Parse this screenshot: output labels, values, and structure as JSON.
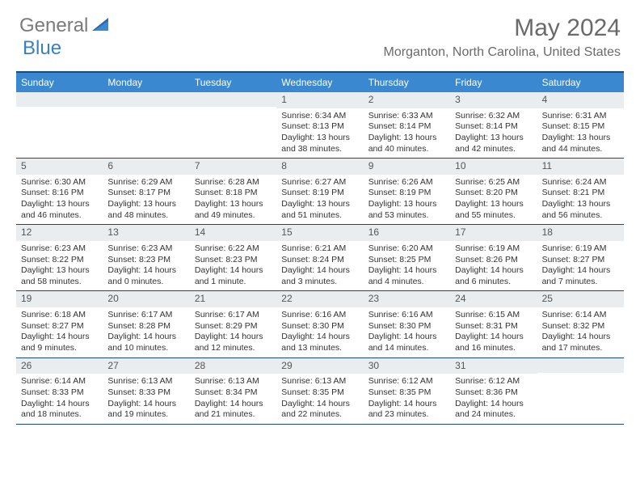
{
  "logo": {
    "general": "General",
    "blue": "Blue"
  },
  "title": "May 2024",
  "location": "Morganton, North Carolina, United States",
  "colors": {
    "header_bg": "#3a88d0",
    "border": "#1b4a7a",
    "daynum_bg": "#e9edf0",
    "text": "#333333",
    "title_text": "#6a6a6a",
    "logo_gray": "#7a7a7a",
    "logo_blue": "#3a7fc4"
  },
  "day_names": [
    "Sunday",
    "Monday",
    "Tuesday",
    "Wednesday",
    "Thursday",
    "Friday",
    "Saturday"
  ],
  "weeks": [
    [
      {
        "num": "",
        "sunrise": "",
        "sunset": "",
        "daylight": ""
      },
      {
        "num": "",
        "sunrise": "",
        "sunset": "",
        "daylight": ""
      },
      {
        "num": "",
        "sunrise": "",
        "sunset": "",
        "daylight": ""
      },
      {
        "num": "1",
        "sunrise": "Sunrise: 6:34 AM",
        "sunset": "Sunset: 8:13 PM",
        "daylight": "Daylight: 13 hours and 38 minutes."
      },
      {
        "num": "2",
        "sunrise": "Sunrise: 6:33 AM",
        "sunset": "Sunset: 8:14 PM",
        "daylight": "Daylight: 13 hours and 40 minutes."
      },
      {
        "num": "3",
        "sunrise": "Sunrise: 6:32 AM",
        "sunset": "Sunset: 8:14 PM",
        "daylight": "Daylight: 13 hours and 42 minutes."
      },
      {
        "num": "4",
        "sunrise": "Sunrise: 6:31 AM",
        "sunset": "Sunset: 8:15 PM",
        "daylight": "Daylight: 13 hours and 44 minutes."
      }
    ],
    [
      {
        "num": "5",
        "sunrise": "Sunrise: 6:30 AM",
        "sunset": "Sunset: 8:16 PM",
        "daylight": "Daylight: 13 hours and 46 minutes."
      },
      {
        "num": "6",
        "sunrise": "Sunrise: 6:29 AM",
        "sunset": "Sunset: 8:17 PM",
        "daylight": "Daylight: 13 hours and 48 minutes."
      },
      {
        "num": "7",
        "sunrise": "Sunrise: 6:28 AM",
        "sunset": "Sunset: 8:18 PM",
        "daylight": "Daylight: 13 hours and 49 minutes."
      },
      {
        "num": "8",
        "sunrise": "Sunrise: 6:27 AM",
        "sunset": "Sunset: 8:19 PM",
        "daylight": "Daylight: 13 hours and 51 minutes."
      },
      {
        "num": "9",
        "sunrise": "Sunrise: 6:26 AM",
        "sunset": "Sunset: 8:19 PM",
        "daylight": "Daylight: 13 hours and 53 minutes."
      },
      {
        "num": "10",
        "sunrise": "Sunrise: 6:25 AM",
        "sunset": "Sunset: 8:20 PM",
        "daylight": "Daylight: 13 hours and 55 minutes."
      },
      {
        "num": "11",
        "sunrise": "Sunrise: 6:24 AM",
        "sunset": "Sunset: 8:21 PM",
        "daylight": "Daylight: 13 hours and 56 minutes."
      }
    ],
    [
      {
        "num": "12",
        "sunrise": "Sunrise: 6:23 AM",
        "sunset": "Sunset: 8:22 PM",
        "daylight": "Daylight: 13 hours and 58 minutes."
      },
      {
        "num": "13",
        "sunrise": "Sunrise: 6:23 AM",
        "sunset": "Sunset: 8:23 PM",
        "daylight": "Daylight: 14 hours and 0 minutes."
      },
      {
        "num": "14",
        "sunrise": "Sunrise: 6:22 AM",
        "sunset": "Sunset: 8:23 PM",
        "daylight": "Daylight: 14 hours and 1 minute."
      },
      {
        "num": "15",
        "sunrise": "Sunrise: 6:21 AM",
        "sunset": "Sunset: 8:24 PM",
        "daylight": "Daylight: 14 hours and 3 minutes."
      },
      {
        "num": "16",
        "sunrise": "Sunrise: 6:20 AM",
        "sunset": "Sunset: 8:25 PM",
        "daylight": "Daylight: 14 hours and 4 minutes."
      },
      {
        "num": "17",
        "sunrise": "Sunrise: 6:19 AM",
        "sunset": "Sunset: 8:26 PM",
        "daylight": "Daylight: 14 hours and 6 minutes."
      },
      {
        "num": "18",
        "sunrise": "Sunrise: 6:19 AM",
        "sunset": "Sunset: 8:27 PM",
        "daylight": "Daylight: 14 hours and 7 minutes."
      }
    ],
    [
      {
        "num": "19",
        "sunrise": "Sunrise: 6:18 AM",
        "sunset": "Sunset: 8:27 PM",
        "daylight": "Daylight: 14 hours and 9 minutes."
      },
      {
        "num": "20",
        "sunrise": "Sunrise: 6:17 AM",
        "sunset": "Sunset: 8:28 PM",
        "daylight": "Daylight: 14 hours and 10 minutes."
      },
      {
        "num": "21",
        "sunrise": "Sunrise: 6:17 AM",
        "sunset": "Sunset: 8:29 PM",
        "daylight": "Daylight: 14 hours and 12 minutes."
      },
      {
        "num": "22",
        "sunrise": "Sunrise: 6:16 AM",
        "sunset": "Sunset: 8:30 PM",
        "daylight": "Daylight: 14 hours and 13 minutes."
      },
      {
        "num": "23",
        "sunrise": "Sunrise: 6:16 AM",
        "sunset": "Sunset: 8:30 PM",
        "daylight": "Daylight: 14 hours and 14 minutes."
      },
      {
        "num": "24",
        "sunrise": "Sunrise: 6:15 AM",
        "sunset": "Sunset: 8:31 PM",
        "daylight": "Daylight: 14 hours and 16 minutes."
      },
      {
        "num": "25",
        "sunrise": "Sunrise: 6:14 AM",
        "sunset": "Sunset: 8:32 PM",
        "daylight": "Daylight: 14 hours and 17 minutes."
      }
    ],
    [
      {
        "num": "26",
        "sunrise": "Sunrise: 6:14 AM",
        "sunset": "Sunset: 8:33 PM",
        "daylight": "Daylight: 14 hours and 18 minutes."
      },
      {
        "num": "27",
        "sunrise": "Sunrise: 6:13 AM",
        "sunset": "Sunset: 8:33 PM",
        "daylight": "Daylight: 14 hours and 19 minutes."
      },
      {
        "num": "28",
        "sunrise": "Sunrise: 6:13 AM",
        "sunset": "Sunset: 8:34 PM",
        "daylight": "Daylight: 14 hours and 21 minutes."
      },
      {
        "num": "29",
        "sunrise": "Sunrise: 6:13 AM",
        "sunset": "Sunset: 8:35 PM",
        "daylight": "Daylight: 14 hours and 22 minutes."
      },
      {
        "num": "30",
        "sunrise": "Sunrise: 6:12 AM",
        "sunset": "Sunset: 8:35 PM",
        "daylight": "Daylight: 14 hours and 23 minutes."
      },
      {
        "num": "31",
        "sunrise": "Sunrise: 6:12 AM",
        "sunset": "Sunset: 8:36 PM",
        "daylight": "Daylight: 14 hours and 24 minutes."
      },
      {
        "num": "",
        "sunrise": "",
        "sunset": "",
        "daylight": ""
      }
    ]
  ]
}
